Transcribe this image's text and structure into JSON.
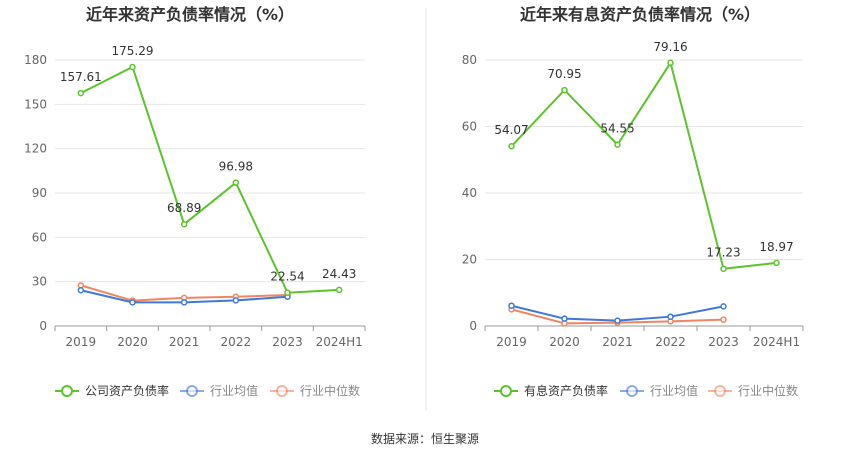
{
  "chart_data": [
    {
      "type": "line",
      "title": "近年来资产负债率情况（%）",
      "categories": [
        "2019",
        "2020",
        "2021",
        "2022",
        "2023",
        "2024H1"
      ],
      "ylim": [
        0,
        180
      ],
      "yticks": [
        "0",
        "30",
        "60",
        "90",
        "120",
        "150",
        "180"
      ],
      "grid": true,
      "legend_position": "bottom",
      "series": [
        {
          "name": "公司资产负债率",
          "color": "#5bc42b",
          "values": [
            157.61,
            175.29,
            68.89,
            96.98,
            22.54,
            24.43
          ],
          "labels": [
            "157.61",
            "175.29",
            "68.89",
            "96.98",
            "22.54",
            "24.43"
          ]
        },
        {
          "name": "行业均值",
          "color": "#3f78d8",
          "values": [
            24.2,
            16.0,
            16.0,
            17.3,
            19.8,
            null
          ],
          "labels": []
        },
        {
          "name": "行业中位数",
          "color": "#f08560",
          "values": [
            27.5,
            17.2,
            19.0,
            19.8,
            21.0,
            null
          ],
          "labels": []
        }
      ]
    },
    {
      "type": "line",
      "title": "近年来有息资产负债率情况（%）",
      "categories": [
        "2019",
        "2020",
        "2021",
        "2022",
        "2023",
        "2024H1"
      ],
      "ylim": [
        0,
        80
      ],
      "yticks": [
        "0",
        "20",
        "40",
        "60",
        "80"
      ],
      "grid": true,
      "legend_position": "bottom",
      "series": [
        {
          "name": "有息资产负债率",
          "color": "#5bc42b",
          "values": [
            54.07,
            70.95,
            54.55,
            79.16,
            17.23,
            18.97
          ],
          "labels": [
            "54.07",
            "70.95",
            "54.55",
            "79.16",
            "17.23",
            "18.97"
          ]
        },
        {
          "name": "行业均值",
          "color": "#3f78d8",
          "values": [
            6.1,
            2.2,
            1.6,
            2.8,
            5.9,
            null
          ],
          "labels": []
        },
        {
          "name": "行业中位数",
          "color": "#f08560",
          "values": [
            5.0,
            0.8,
            1.0,
            1.4,
            1.9,
            null
          ],
          "labels": []
        }
      ]
    }
  ],
  "source_text": "数据来源：恒生聚源"
}
